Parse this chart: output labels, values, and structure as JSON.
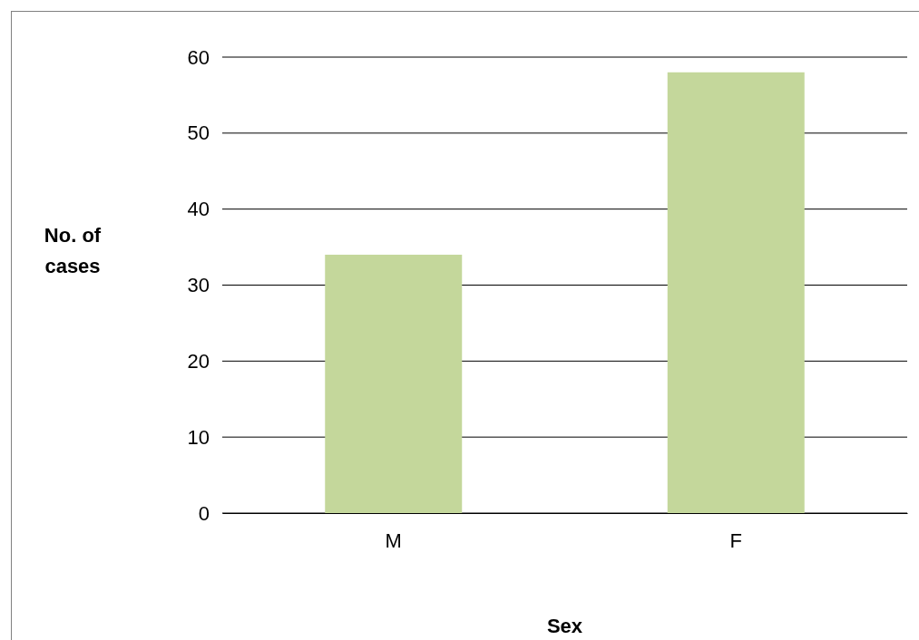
{
  "chart_data": {
    "type": "bar",
    "xlabel": "Sex",
    "ylabel": "No. of cases",
    "categories": [
      "M",
      "F"
    ],
    "values": [
      34,
      58
    ],
    "color": "#c4d79b",
    "ylim": [
      0,
      60
    ],
    "yticks": [
      0,
      10,
      20,
      30,
      40,
      50,
      60
    ],
    "grid": "y"
  }
}
